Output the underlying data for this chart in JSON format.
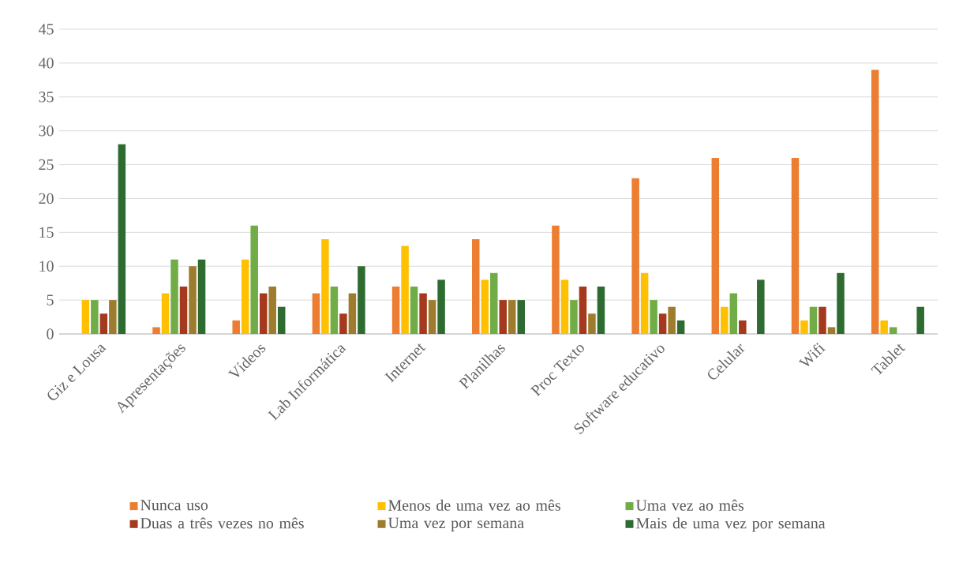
{
  "chart_data": {
    "type": "bar",
    "categories": [
      "Giz e Lousa",
      "Apresentações",
      "Vídeos",
      "Lab Informática",
      "Internet",
      "Planilhas",
      "Proc Texto",
      "Software educativo",
      "Celular",
      "Wifi",
      "Tablet"
    ],
    "series": [
      {
        "name": "Nunca uso",
        "color": "#ed7d31",
        "values": [
          0,
          1,
          2,
          6,
          7,
          14,
          16,
          23,
          26,
          26,
          39
        ]
      },
      {
        "name": "Menos de uma vez ao mês",
        "color": "#ffc000",
        "values": [
          5,
          6,
          11,
          14,
          13,
          8,
          8,
          9,
          4,
          2,
          2
        ]
      },
      {
        "name": "Uma vez ao mês",
        "color": "#70ad47",
        "values": [
          5,
          11,
          16,
          7,
          7,
          9,
          5,
          5,
          6,
          4,
          1
        ]
      },
      {
        "name": "Duas a três vezes no mês",
        "color": "#a5391e",
        "values": [
          3,
          7,
          6,
          3,
          6,
          5,
          7,
          3,
          2,
          4,
          0
        ]
      },
      {
        "name": "Uma vez por semana",
        "color": "#9e7c2e",
        "values": [
          5,
          10,
          7,
          6,
          5,
          5,
          3,
          4,
          0,
          1,
          0
        ]
      },
      {
        "name": "Mais de uma vez por semana",
        "color": "#2e6b30",
        "values": [
          28,
          11,
          4,
          10,
          8,
          5,
          7,
          2,
          8,
          9,
          4
        ]
      }
    ],
    "ylim": [
      0,
      45
    ],
    "yticks": [
      0,
      5,
      10,
      15,
      20,
      25,
      30,
      35,
      40,
      45
    ],
    "grid": "y",
    "legend": "bottom"
  }
}
